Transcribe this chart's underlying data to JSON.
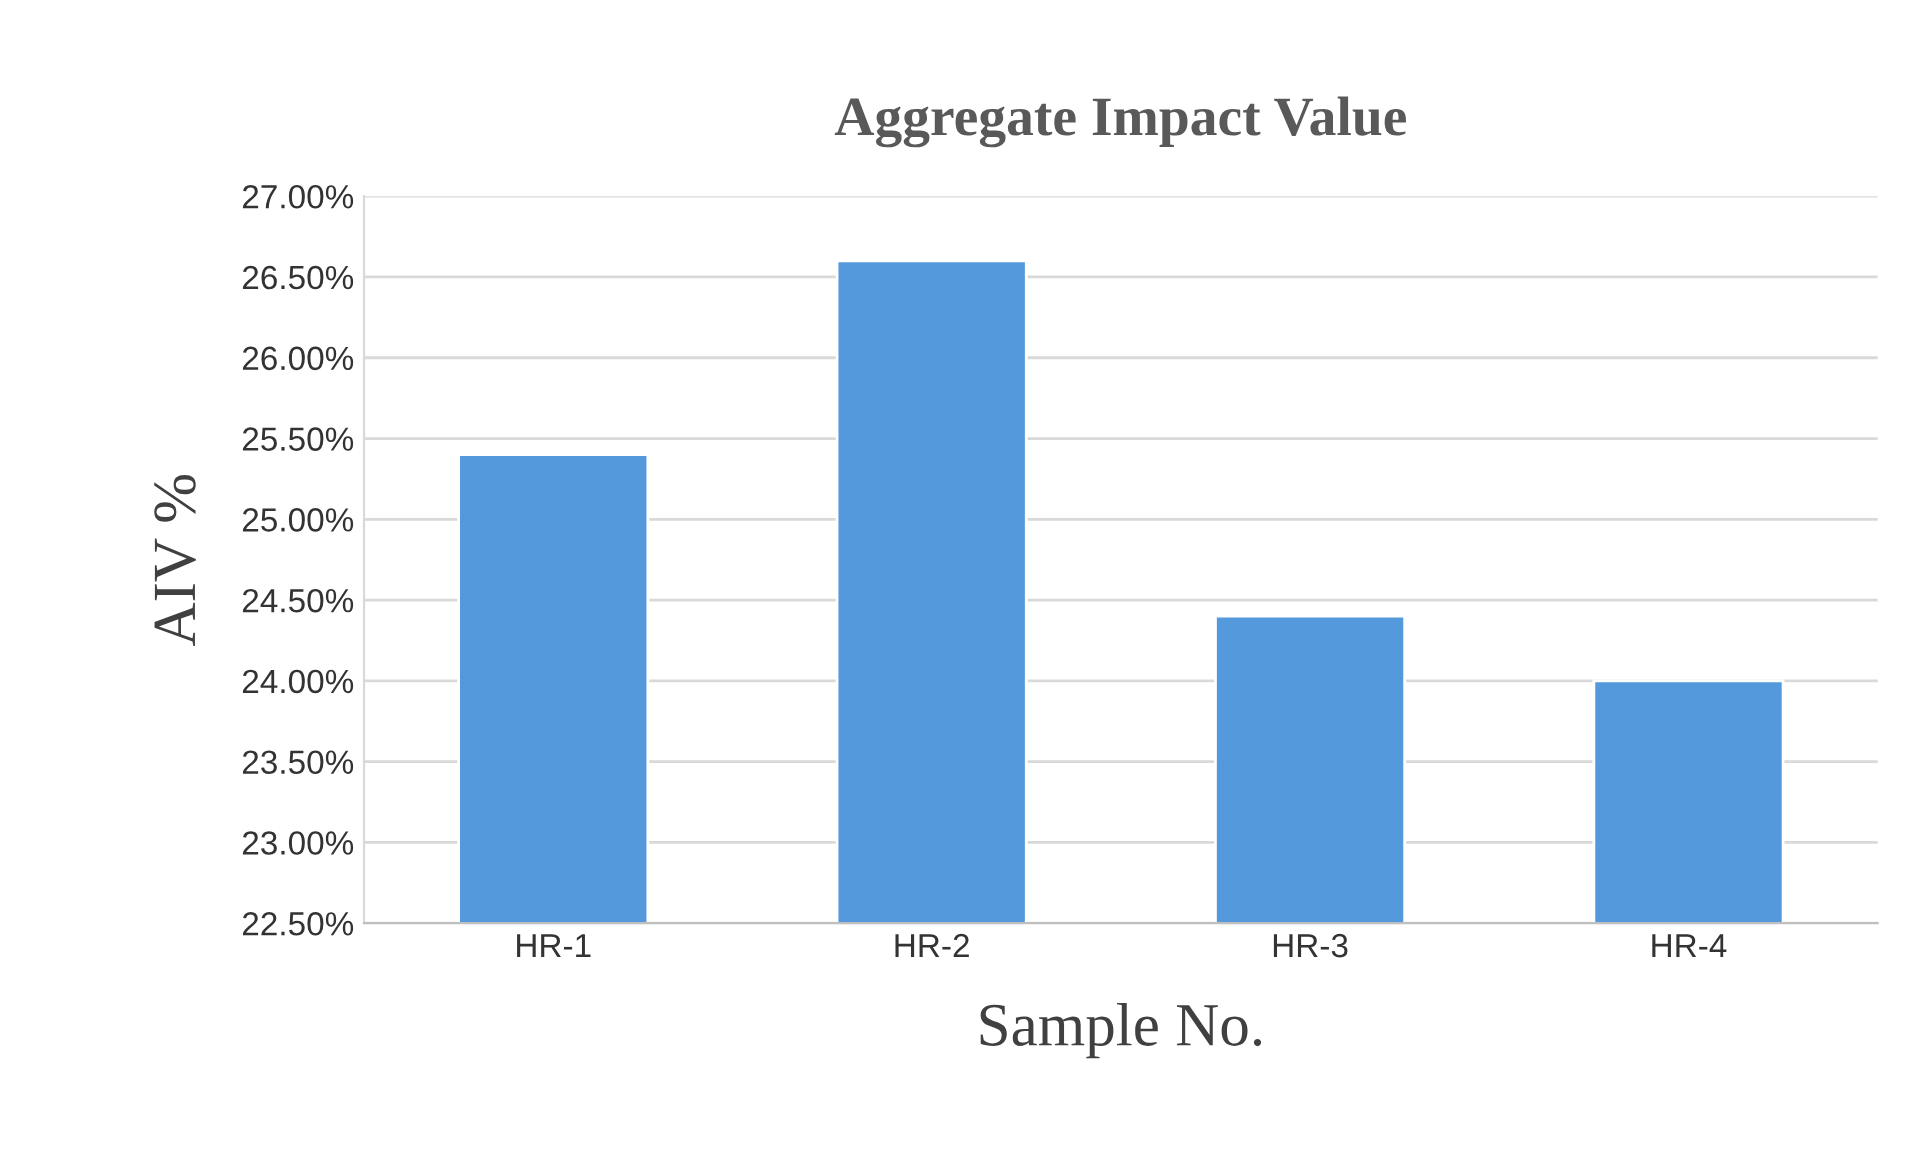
{
  "chart_data": {
    "type": "bar",
    "title": "Aggregate Impact Value",
    "xlabel": "Sample No.",
    "ylabel": "AIV %",
    "categories": [
      "HR-1",
      "HR-2",
      "HR-3",
      "HR-4"
    ],
    "values": [
      25.4,
      26.6,
      24.4,
      24.0
    ],
    "color": "#5599dd",
    "ylim": [
      22.5,
      27.0
    ],
    "yticks": [
      {
        "value": 22.5,
        "label": "22.50%"
      },
      {
        "value": 23.0,
        "label": "23.00%"
      },
      {
        "value": 23.5,
        "label": "23.50%"
      },
      {
        "value": 24.0,
        "label": "24.00%"
      },
      {
        "value": 24.5,
        "label": "24.50%"
      },
      {
        "value": 25.0,
        "label": "25.00%"
      },
      {
        "value": 25.5,
        "label": "25.50%"
      },
      {
        "value": 26.0,
        "label": "26.00%"
      },
      {
        "value": 26.5,
        "label": "26.50%"
      },
      {
        "value": 27.0,
        "label": "27.00%"
      }
    ],
    "grid": "y"
  }
}
